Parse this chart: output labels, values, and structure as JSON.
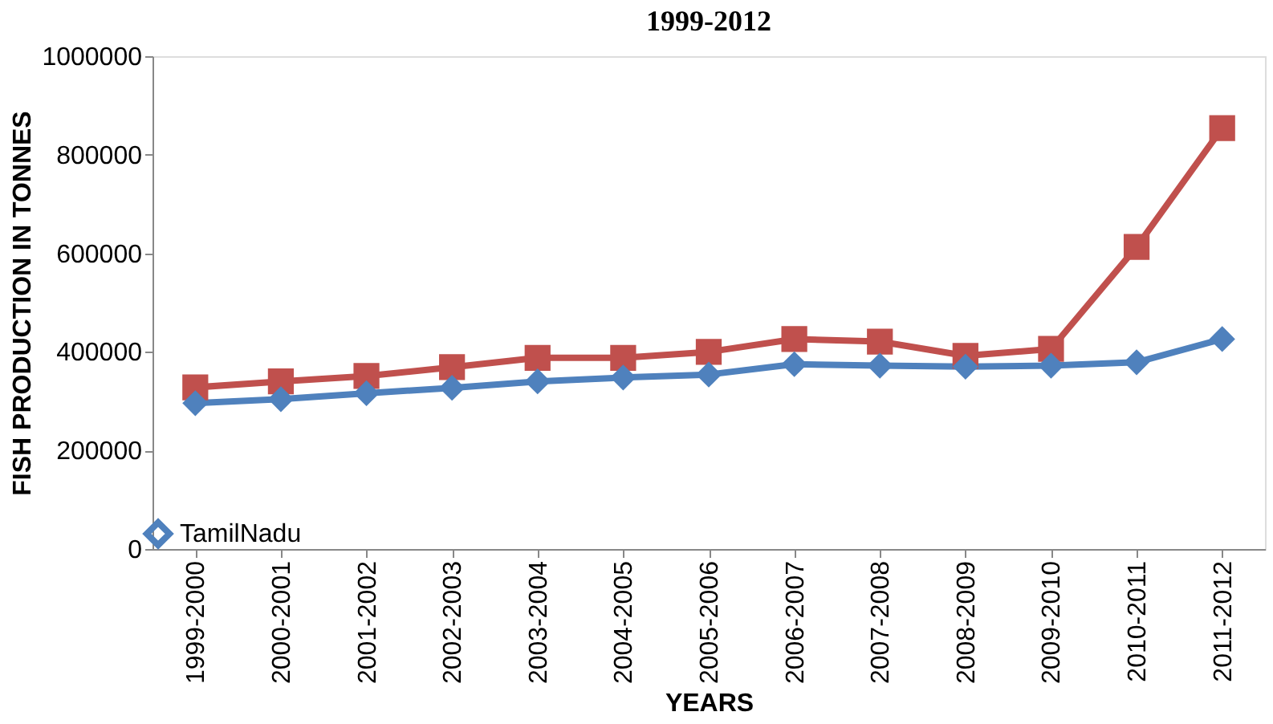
{
  "chart_data": {
    "type": "line",
    "title": "1999-2012",
    "xlabel": "YEARS",
    "ylabel": "FISH PRODUCTION IN TONNES",
    "categories": [
      "1999-2000",
      "2000-2001",
      "2001-2002",
      "2002-2003",
      "2003-2004",
      "2004-2005",
      "2005-2006",
      "2006-2007",
      "2007-2008",
      "2008-2009",
      "2009-2010",
      "2010-2011",
      "2011-2012"
    ],
    "series": [
      {
        "name": "TamilNadu",
        "color": "#4f81bd",
        "marker": "diamond",
        "values": [
          296000,
          304000,
          316000,
          327000,
          340000,
          348000,
          354000,
          375000,
          372000,
          370000,
          372000,
          379000,
          426000
        ]
      },
      {
        "color": "#c0504d",
        "marker": "square",
        "values": [
          328000,
          340000,
          351000,
          369000,
          388000,
          388000,
          400000,
          426000,
          421000,
          392000,
          406000,
          613000,
          854000
        ]
      }
    ],
    "ylim": [
      0,
      1000000
    ],
    "yticks": [
      0,
      200000,
      400000,
      600000,
      800000,
      1000000
    ],
    "grid": false,
    "legend": "bottom left",
    "line_style": "solid"
  }
}
